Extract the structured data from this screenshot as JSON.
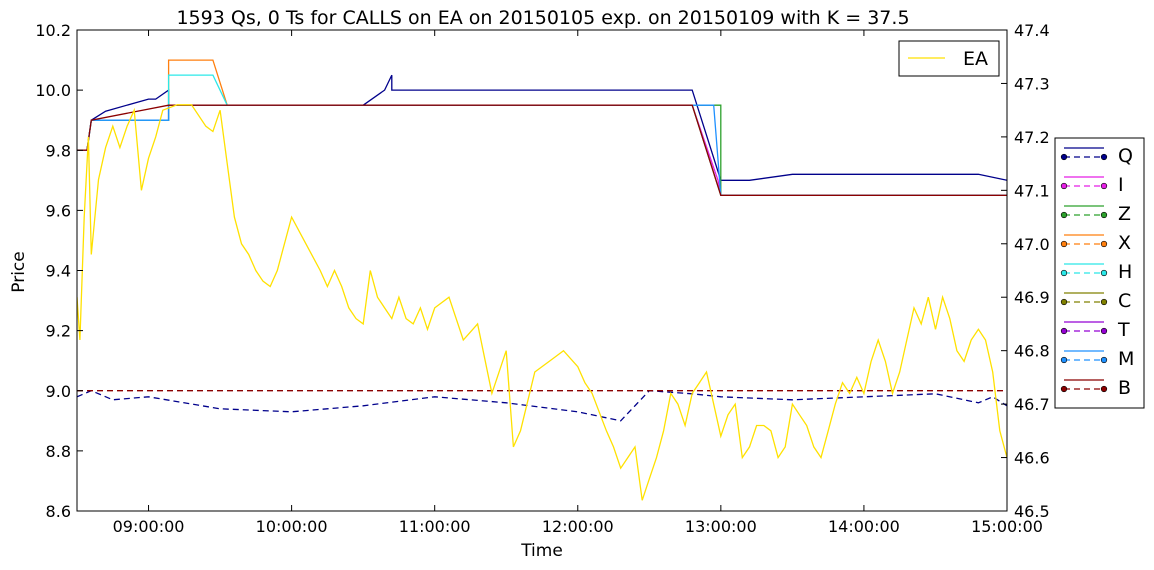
{
  "chart_data": {
    "type": "line",
    "title": "1593 Qs, 0 Ts for CALLS on EA on 20150105 exp. on 20150109 with K = 37.5",
    "xlabel": "Time",
    "ylabel": "Price",
    "xlim_hours": [
      8.5,
      15.0
    ],
    "ylim": [
      8.6,
      10.2
    ],
    "y2lim": [
      46.5,
      47.4
    ],
    "x_ticks": [
      {
        "v": 9,
        "label": "09:00:00"
      },
      {
        "v": 10,
        "label": "10:00:00"
      },
      {
        "v": 11,
        "label": "11:00:00"
      },
      {
        "v": 12,
        "label": "12:00:00"
      },
      {
        "v": 13,
        "label": "13:00:00"
      },
      {
        "v": 14,
        "label": "14:00:00"
      },
      {
        "v": 15,
        "label": "15:00:00"
      }
    ],
    "y_ticks": [
      "8.6",
      "8.8",
      "9.0",
      "9.2",
      "9.4",
      "9.6",
      "9.8",
      "10.0",
      "10.2"
    ],
    "y2_ticks": [
      "46.5",
      "46.6",
      "46.7",
      "46.8",
      "46.9",
      "47.0",
      "47.1",
      "47.2",
      "47.3",
      "47.4"
    ],
    "legend_top": {
      "placement": "top-right",
      "label": "EA",
      "color": "#ffe100"
    },
    "legend_side": {
      "placement": "right-outside",
      "entries": [
        {
          "label": "Q",
          "color": "#00008b"
        },
        {
          "label": "I",
          "color": "#e51ee5"
        },
        {
          "label": "Z",
          "color": "#2ca02c"
        },
        {
          "label": "X",
          "color": "#ff7f0e"
        },
        {
          "label": "H",
          "color": "#2be8e8"
        },
        {
          "label": "C",
          "color": "#808000"
        },
        {
          "label": "T",
          "color": "#9400d3"
        },
        {
          "label": "M",
          "color": "#1e90ff"
        },
        {
          "label": "B",
          "color": "#8b0000"
        }
      ]
    },
    "ea_series": {
      "name": "EA",
      "color": "#ffe100",
      "x": [
        8.5,
        8.52,
        8.55,
        8.58,
        8.6,
        8.65,
        8.7,
        8.75,
        8.8,
        8.85,
        8.9,
        8.95,
        9.0,
        9.05,
        9.1,
        9.2,
        9.3,
        9.4,
        9.45,
        9.5,
        9.55,
        9.6,
        9.65,
        9.7,
        9.75,
        9.8,
        9.85,
        9.9,
        10.0,
        10.1,
        10.2,
        10.25,
        10.3,
        10.35,
        10.4,
        10.45,
        10.5,
        10.55,
        10.6,
        10.65,
        10.7,
        10.75,
        10.8,
        10.85,
        10.9,
        10.95,
        11.0,
        11.1,
        11.2,
        11.3,
        11.4,
        11.5,
        11.55,
        11.6,
        11.7,
        11.8,
        11.9,
        12.0,
        12.05,
        12.1,
        12.2,
        12.25,
        12.3,
        12.35,
        12.4,
        12.45,
        12.5,
        12.55,
        12.6,
        12.65,
        12.7,
        12.75,
        12.8,
        12.85,
        12.9,
        12.95,
        13.0,
        13.05,
        13.1,
        13.15,
        13.2,
        13.25,
        13.3,
        13.35,
        13.4,
        13.45,
        13.5,
        13.55,
        13.6,
        13.65,
        13.7,
        13.75,
        13.8,
        13.85,
        13.9,
        13.95,
        14.0,
        14.05,
        14.1,
        14.15,
        14.2,
        14.25,
        14.3,
        14.35,
        14.4,
        14.45,
        14.5,
        14.55,
        14.6,
        14.65,
        14.7,
        14.75,
        14.8,
        14.85,
        14.9,
        14.95,
        15.0
      ],
      "y": [
        46.9,
        46.82,
        47.05,
        47.2,
        46.98,
        47.12,
        47.18,
        47.22,
        47.18,
        47.22,
        47.25,
        47.1,
        47.16,
        47.2,
        47.25,
        47.26,
        47.26,
        47.22,
        47.21,
        47.25,
        47.15,
        47.05,
        47.0,
        46.98,
        46.95,
        46.93,
        46.92,
        46.95,
        47.05,
        47.0,
        46.95,
        46.92,
        46.95,
        46.92,
        46.88,
        46.86,
        46.85,
        46.95,
        46.9,
        46.88,
        46.86,
        46.9,
        46.86,
        46.85,
        46.88,
        46.84,
        46.88,
        46.9,
        46.82,
        46.85,
        46.72,
        46.8,
        46.62,
        46.65,
        46.76,
        46.78,
        46.8,
        46.77,
        46.74,
        46.72,
        46.65,
        46.62,
        46.58,
        46.6,
        46.62,
        46.52,
        46.56,
        46.6,
        46.65,
        46.72,
        46.7,
        46.66,
        46.72,
        46.74,
        46.76,
        46.7,
        46.64,
        46.68,
        46.7,
        46.6,
        46.62,
        46.66,
        46.66,
        46.65,
        46.6,
        46.62,
        46.7,
        46.68,
        46.66,
        46.62,
        46.6,
        46.65,
        46.7,
        46.74,
        46.72,
        46.75,
        46.72,
        46.78,
        46.82,
        46.78,
        46.72,
        46.76,
        46.82,
        46.88,
        46.85,
        46.9,
        46.84,
        46.9,
        46.86,
        46.8,
        46.78,
        46.82,
        46.84,
        46.82,
        46.76,
        46.65,
        46.6
      ]
    },
    "series": [
      {
        "name": "Q",
        "color": "#00008b",
        "x": [
          8.5,
          8.57,
          8.6,
          8.7,
          9.0,
          9.05,
          9.14,
          9.14,
          9.5,
          9.8,
          10.5,
          10.65,
          10.7,
          10.7,
          12.8,
          13.0,
          13.0,
          13.2,
          13.5,
          14.6,
          14.8,
          15.0
        ],
        "y": [
          9.8,
          9.8,
          9.9,
          9.93,
          9.97,
          9.97,
          10.0,
          9.95,
          9.95,
          9.95,
          9.95,
          10.0,
          10.05,
          10.0,
          10.0,
          9.7,
          9.7,
          9.7,
          9.72,
          9.72,
          9.72,
          9.7
        ]
      },
      {
        "name": "Q-bid",
        "color": "#00008b",
        "dash": "6,4",
        "x": [
          8.5,
          8.6,
          8.75,
          9.0,
          9.5,
          10.0,
          10.5,
          11.0,
          11.5,
          12.0,
          12.3,
          12.5,
          12.8,
          13.0,
          13.5,
          14.0,
          14.5,
          14.8,
          14.9,
          15.0
        ],
        "y": [
          8.98,
          9.0,
          8.97,
          8.98,
          8.94,
          8.93,
          8.95,
          8.98,
          8.96,
          8.93,
          8.9,
          9.0,
          8.99,
          8.98,
          8.97,
          8.98,
          8.99,
          8.96,
          8.98,
          8.95
        ]
      },
      {
        "name": "I",
        "color": "#e51ee5",
        "x": [
          8.5,
          8.57,
          8.6,
          9.14,
          9.14,
          9.5,
          12.8,
          12.98,
          13.0,
          15.0
        ],
        "y": [
          9.8,
          9.8,
          9.9,
          9.9,
          9.95,
          9.95,
          9.95,
          9.7,
          9.65,
          9.65
        ]
      },
      {
        "name": "Z",
        "color": "#2ca02c",
        "x": [
          8.5,
          8.57,
          8.6,
          9.14,
          9.14,
          9.5,
          12.8,
          13.0,
          13.0,
          15.0
        ],
        "y": [
          9.8,
          9.8,
          9.9,
          9.9,
          9.95,
          9.95,
          9.95,
          9.95,
          9.65,
          9.65
        ]
      },
      {
        "name": "X",
        "color": "#ff7f0e",
        "x": [
          8.5,
          8.57,
          8.6,
          9.14,
          9.14,
          9.45,
          9.55,
          9.55,
          12.8,
          13.0,
          15.0
        ],
        "y": [
          9.8,
          9.8,
          9.9,
          9.9,
          10.1,
          10.1,
          9.95,
          9.95,
          9.95,
          9.65,
          9.65
        ]
      },
      {
        "name": "H",
        "color": "#2be8e8",
        "x": [
          8.5,
          8.57,
          8.6,
          9.14,
          9.14,
          9.45,
          9.55,
          12.8,
          13.0,
          15.0
        ],
        "y": [
          9.8,
          9.8,
          9.9,
          9.9,
          10.05,
          10.05,
          9.95,
          9.95,
          9.65,
          9.65
        ]
      },
      {
        "name": "M",
        "color": "#1e90ff",
        "x": [
          8.5,
          8.57,
          8.6,
          9.14,
          9.14,
          12.8,
          12.95,
          13.0,
          15.0
        ],
        "y": [
          9.8,
          9.8,
          9.9,
          9.9,
          9.95,
          9.95,
          9.95,
          9.65,
          9.65
        ]
      },
      {
        "name": "B",
        "color": "#8b0000",
        "x": [
          8.5,
          8.57,
          8.6,
          9.14,
          9.14,
          12.8,
          13.0,
          15.0
        ],
        "y": [
          9.8,
          9.8,
          9.9,
          9.95,
          9.95,
          9.95,
          9.65,
          9.65
        ]
      },
      {
        "name": "B-bid",
        "color": "#8b0000",
        "dash": "6,4",
        "x": [
          8.5,
          15.0
        ],
        "y": [
          9.0,
          9.0
        ]
      }
    ]
  }
}
